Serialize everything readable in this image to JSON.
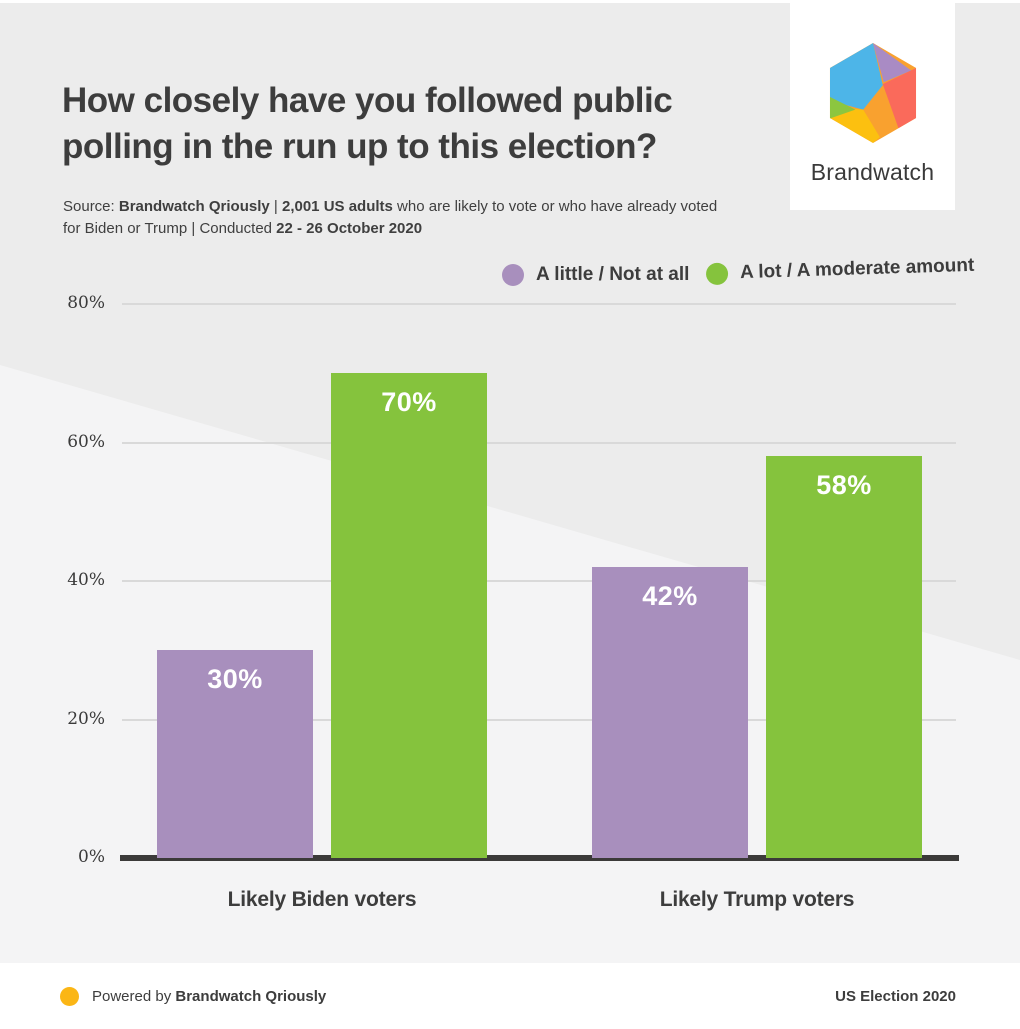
{
  "header": {
    "title": "How closely have you followed public polling in the run up to this election?",
    "source_segments": [
      {
        "text": "Source: ",
        "bold": false
      },
      {
        "text": "Brandwatch Qriously",
        "bold": true
      },
      {
        "text": " | ",
        "bold": false
      },
      {
        "text": "2,001 US adults",
        "bold": true
      },
      {
        "text": " who are likely to vote or who have already voted for Biden or Trump | Conducted ",
        "bold": false
      },
      {
        "text": "22 - 26 October 2020",
        "bold": true
      }
    ]
  },
  "logo": {
    "text": "Brandwatch",
    "colors": {
      "blue": "#4db5e8",
      "purple": "#a98bc4",
      "red": "#fa6a5b",
      "orange": "#f9a12f",
      "yellow": "#fcc010",
      "green": "#8cc63f"
    }
  },
  "chart_data": {
    "type": "bar",
    "categories": [
      "Likely Biden voters",
      "Likely Trump voters"
    ],
    "series": [
      {
        "name": "A little / Not at all",
        "color": "#a88fbd",
        "values": [
          30,
          42
        ]
      },
      {
        "name": "A lot / A moderate amount",
        "color": "#85c33d",
        "values": [
          70,
          58
        ]
      }
    ],
    "value_labels": [
      [
        "30%",
        "42%"
      ],
      [
        "70%",
        "58%"
      ]
    ],
    "value_suffix": "%",
    "ylim": [
      0,
      80
    ],
    "yticks": [
      {
        "label": "80%",
        "value": 80
      },
      {
        "label": "60%",
        "value": 60
      },
      {
        "label": "40%",
        "value": 40
      },
      {
        "label": "20%",
        "value": 20
      },
      {
        "label": "0%",
        "value": 0
      }
    ],
    "grid": true,
    "legend_position": "top-right"
  },
  "legend": {
    "items": [
      {
        "label": "A little / Not at all",
        "color": "#a88fbd"
      },
      {
        "label": "A lot / A moderate amount",
        "color": "#85c33d"
      }
    ]
  },
  "footer": {
    "powered_prefix": "Powered by ",
    "powered_brand": "Brandwatch Qriously",
    "right_text": "US Election 2020",
    "dot_color": "#fbb615"
  },
  "colors": {
    "background": "#ececec",
    "background_light": "#f4f4f5",
    "gridline": "#d9d9d9",
    "axis": "#3b3a39",
    "text_dark": "#3d3d3d",
    "bar_purple": "#a88fbd",
    "bar_green": "#85c33d"
  }
}
